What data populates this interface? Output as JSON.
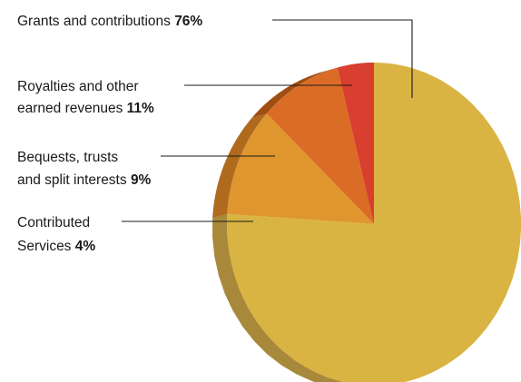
{
  "chart_data": {
    "type": "pie",
    "title": "",
    "slices": [
      {
        "name": "Grants and contributions",
        "value": 76,
        "pct_label": "76%",
        "color": "#d9b443",
        "side_color": "#a8883a"
      },
      {
        "name": "Royalties and other earned revenues",
        "value": 11,
        "pct_label": "11%",
        "color": "#e0962e",
        "side_color": "#b06a1e"
      },
      {
        "name": "Bequests, trusts and split interests",
        "value": 9,
        "pct_label": "9%",
        "color": "#db6c26",
        "side_color": "#a04d12"
      },
      {
        "name": "Contributed Services",
        "value": 4,
        "pct_label": "4%",
        "color": "#d93f2e",
        "side_color": "#962416"
      }
    ],
    "labels": [
      {
        "lines": [
          "Grants and contributions"
        ],
        "pct": "76%"
      },
      {
        "lines": [
          "Royalties and other",
          "earned revenues"
        ],
        "pct": "11%"
      },
      {
        "lines": [
          "Bequests, trusts",
          "and split interests"
        ],
        "pct": "9%"
      },
      {
        "lines": [
          "Contributed",
          "Services"
        ],
        "pct": "4%"
      }
    ]
  }
}
